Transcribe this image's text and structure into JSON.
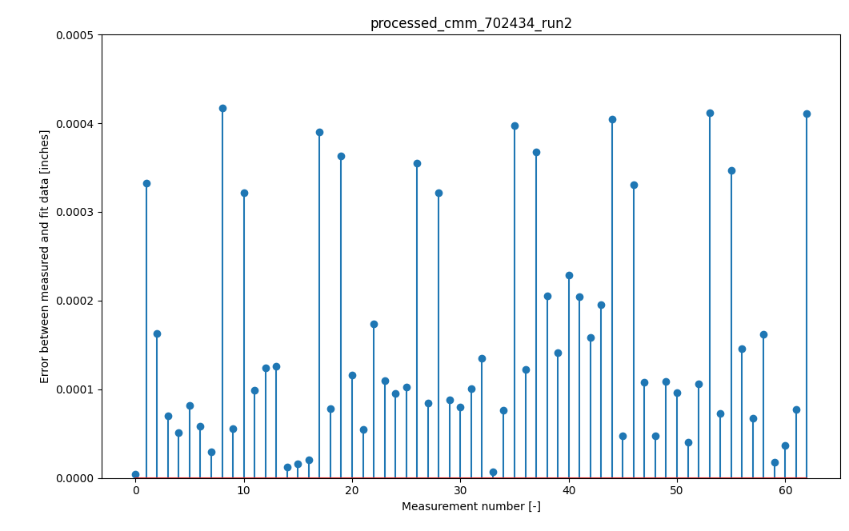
{
  "chart_data": {
    "type": "stem",
    "title": "processed_cmm_702434_run2",
    "x_label": "Measurement number [-]",
    "y_label": "Error between measured and fit data [inches]",
    "x": [
      0,
      1,
      2,
      3,
      4,
      5,
      6,
      7,
      8,
      9,
      10,
      11,
      12,
      13,
      14,
      15,
      16,
      17,
      18,
      19,
      20,
      21,
      22,
      23,
      24,
      25,
      26,
      27,
      28,
      29,
      30,
      31,
      32,
      33,
      34,
      35,
      36,
      37,
      38,
      39,
      40,
      41,
      42,
      43,
      44,
      45,
      46,
      47,
      48,
      49,
      50,
      51,
      52,
      53,
      54,
      55,
      56,
      57,
      58,
      59,
      60,
      61,
      62
    ],
    "values": [
      4e-06,
      0.000332,
      0.000163,
      7e-05,
      5.1e-05,
      8.2e-05,
      5.8e-05,
      2.9e-05,
      0.000417,
      5.6e-05,
      0.000322,
      9.9e-05,
      0.000124,
      0.000126,
      1.2e-05,
      1.6e-05,
      2e-05,
      0.00039,
      7.8e-05,
      0.000363,
      0.000116,
      5.5e-05,
      0.000174,
      0.00011,
      9.5e-05,
      0.000102,
      0.000355,
      8.4e-05,
      0.000322,
      8.8e-05,
      8e-05,
      0.000101,
      0.000135,
      7e-06,
      7.6e-05,
      0.000397,
      0.000122,
      0.000368,
      0.000205,
      0.000141,
      0.000229,
      0.000204,
      0.000158,
      0.000195,
      0.000405,
      4.7e-05,
      0.000331,
      0.000108,
      4.7e-05,
      0.000109,
      9.6e-05,
      4e-05,
      0.000106,
      0.000412,
      7.3e-05,
      0.000347,
      0.000146,
      6.7e-05,
      0.000162,
      1.8e-05,
      3.7e-05,
      7.7e-05,
      0.000411
    ],
    "color": "#1f77b4",
    "marker": "o",
    "xlim": [
      -3.1,
      65.1
    ],
    "xticks": [
      0,
      10,
      20,
      30,
      40,
      50,
      60
    ],
    "ylim": [
      0,
      0.0005
    ],
    "yticks": [
      {
        "value": 0,
        "label": "0.0000"
      },
      0.0001,
      0.0002,
      0.0003,
      0.0004,
      0.0005
    ]
  }
}
